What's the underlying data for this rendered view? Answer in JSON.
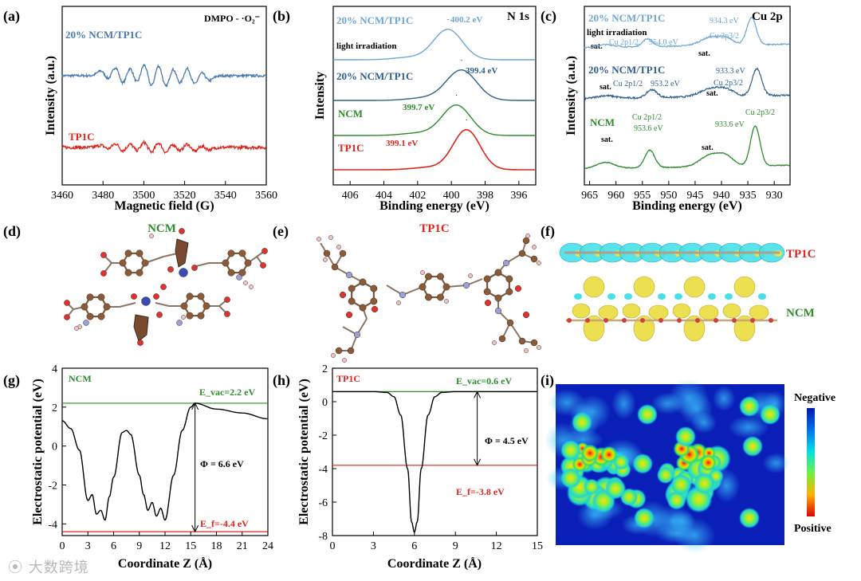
{
  "panel_labels": {
    "a": "(a)",
    "b": "(b)",
    "c": "(c)",
    "d": "(d)",
    "e": "(e)",
    "f": "(f)",
    "g": "(g)",
    "h": "(h)",
    "i": "(i)"
  },
  "colors": {
    "blue": "#4a7ab0",
    "light_blue": "#6fa6d4",
    "dark_blue": "#2f5f8e",
    "red": "#e0241b",
    "green": "#2e8b2e",
    "black": "#000000"
  },
  "panel_a": {
    "tag": "DMPO - ·O₂⁻",
    "ylabel": "Intensity (a.u.)",
    "xlabel": "Magnetic field (G)",
    "trace_top": "20% NCM/TP1C",
    "trace_bottom": "TP1C",
    "ticks": [
      "3460",
      "3480",
      "3500",
      "3520",
      "3540",
      "3560"
    ]
  },
  "panel_b": {
    "tag": "N 1s",
    "ylabel": "Intensity",
    "xlabel": "Binding energy (eV)",
    "ticks": [
      "406",
      "404",
      "402",
      "400",
      "398",
      "396"
    ],
    "traces": [
      {
        "name": "20% NCM/TP1C",
        "sub": "light irradiation",
        "peak": "400.2 eV"
      },
      {
        "name": "20% NCM/TP1C",
        "sub": "",
        "peak": "399.4 eV"
      },
      {
        "name": "NCM",
        "sub": "",
        "peak": "399.7 eV"
      },
      {
        "name": "TP1C",
        "sub": "",
        "peak": "399.1 eV"
      }
    ]
  },
  "panel_c": {
    "tag": "Cu 2p",
    "ylabel": "Intensity (a.u.)",
    "xlabel": "Binding energy (eV)",
    "ticks": [
      "965",
      "960",
      "955",
      "950",
      "945",
      "940",
      "935",
      "930"
    ],
    "sat": "sat.",
    "traces": [
      {
        "name": "20% NCM/TP1C",
        "sub": "light irradiation",
        "p12": "Cu 2p1/2",
        "e12": "954.0 eV",
        "p32": "Cu 2p3/2",
        "e32": "934.3 eV"
      },
      {
        "name": "20% NCM/TP1C",
        "sub": "",
        "p12": "Cu 2p1/2",
        "e12": "953.2 eV",
        "p32": "Cu 2p3/2",
        "e32": "933.3 eV"
      },
      {
        "name": "NCM",
        "sub": "",
        "p12": "Cu 2p1/2",
        "e12": "953.6 eV",
        "p32": "Cu 2p3/2",
        "e32": "933.6 eV"
      }
    ]
  },
  "panel_d": {
    "title": "NCM"
  },
  "panel_e": {
    "title": "TP1C"
  },
  "panel_f": {
    "top": "TP1C",
    "bottom": "NCM"
  },
  "panel_g": {
    "tag": "NCM",
    "ylabel": "Electrostatic potential (eV)",
    "xlabel": "Coordinate Z (Å)",
    "evac": "E_vac=2.2 eV",
    "ef": "E_f=-4.4 eV",
    "phi": "Φ = 6.6 eV",
    "xticks": [
      "0",
      "3",
      "6",
      "9",
      "12",
      "15",
      "18",
      "21",
      "24"
    ],
    "yticks": [
      "4",
      "2",
      "0",
      "-2",
      "-4"
    ]
  },
  "panel_h": {
    "tag": "TP1C",
    "ylabel": "Electrostatic potential (eV)",
    "xlabel": "Coordinate Z (Å)",
    "evac": "E_vac=0.6 eV",
    "ef": "E_f=-3.8 eV",
    "phi": "Φ = 4.5 eV",
    "xticks": [
      "0",
      "3",
      "6",
      "9",
      "12",
      "15"
    ],
    "yticks": [
      "2",
      "0",
      "-2",
      "-4",
      "-6",
      "-8"
    ]
  },
  "panel_i": {
    "legend_top": "Negative",
    "legend_bottom": "Positive"
  },
  "watermark": "大数跨境",
  "chart_data": [
    {
      "type": "line",
      "panel": "a",
      "title": "DMPO - ·O2−",
      "xlabel": "Magnetic field (G)",
      "ylabel": "Intensity (a.u.)",
      "xlim": [
        3460,
        3560
      ],
      "series": [
        {
          "name": "20% NCM/TP1C"
        },
        {
          "name": "TP1C"
        }
      ]
    },
    {
      "type": "line",
      "panel": "b",
      "title": "N 1s",
      "xlabel": "Binding energy (eV)",
      "ylabel": "Intensity",
      "xlim": [
        407,
        395
      ],
      "series": [
        {
          "name": "20% NCM/TP1C light irradiation",
          "peak": 400.2
        },
        {
          "name": "20% NCM/TP1C",
          "peak": 399.4
        },
        {
          "name": "NCM",
          "peak": 399.7
        },
        {
          "name": "TP1C",
          "peak": 399.1
        }
      ]
    },
    {
      "type": "line",
      "panel": "c",
      "title": "Cu 2p",
      "xlabel": "Binding energy (eV)",
      "ylabel": "Intensity (a.u.)",
      "xlim": [
        966,
        927
      ],
      "series": [
        {
          "name": "20% NCM/TP1C light irradiation",
          "peaks": [
            954.0,
            934.3
          ]
        },
        {
          "name": "20% NCM/TP1C",
          "peaks": [
            953.2,
            933.3
          ]
        },
        {
          "name": "NCM",
          "peaks": [
            953.6,
            933.6
          ]
        }
      ]
    },
    {
      "type": "line",
      "panel": "g",
      "title": "NCM",
      "xlabel": "Coordinate Z (Å)",
      "ylabel": "Electrostatic potential (eV)",
      "xlim": [
        0,
        24
      ],
      "ylim": [
        -4.5,
        4
      ],
      "x": [
        0,
        1,
        2,
        3,
        3.5,
        4,
        4.5,
        5,
        5.5,
        6,
        7,
        7.5,
        8,
        9,
        9.5,
        10,
        10.5,
        11,
        11.5,
        12,
        13,
        14,
        15,
        15.5,
        18,
        21,
        24
      ],
      "y": [
        1.3,
        0.9,
        -0.2,
        -2.8,
        -2.5,
        -3.5,
        -3.3,
        -3.8,
        -2.6,
        -1.6,
        0.7,
        0.8,
        0.6,
        -1.5,
        -2.5,
        -3.3,
        -2.9,
        -3.6,
        -3.2,
        -3.8,
        -1.5,
        0.8,
        2.0,
        2.2,
        1.9,
        1.7,
        1.4
      ],
      "evac": 2.2,
      "ef": -4.4,
      "phi": 6.6
    },
    {
      "type": "line",
      "panel": "h",
      "title": "TP1C",
      "xlabel": "Coordinate Z (Å)",
      "ylabel": "Electrostatic potential (eV)",
      "xlim": [
        0,
        15
      ],
      "ylim": [
        -8,
        2
      ],
      "x": [
        0,
        1,
        2,
        3,
        4,
        4.5,
        5,
        5.5,
        5.8,
        6,
        6.2,
        6.5,
        7,
        7.5,
        8,
        9,
        10,
        12,
        15
      ],
      "y": [
        0.6,
        0.6,
        0.6,
        0.6,
        0.55,
        0.3,
        -0.8,
        -4.0,
        -7.2,
        -7.8,
        -7.2,
        -4.0,
        -0.8,
        0.3,
        0.55,
        0.6,
        0.6,
        0.6,
        0.6
      ],
      "evac": 0.6,
      "ef": -3.8,
      "phi": 4.5
    }
  ]
}
